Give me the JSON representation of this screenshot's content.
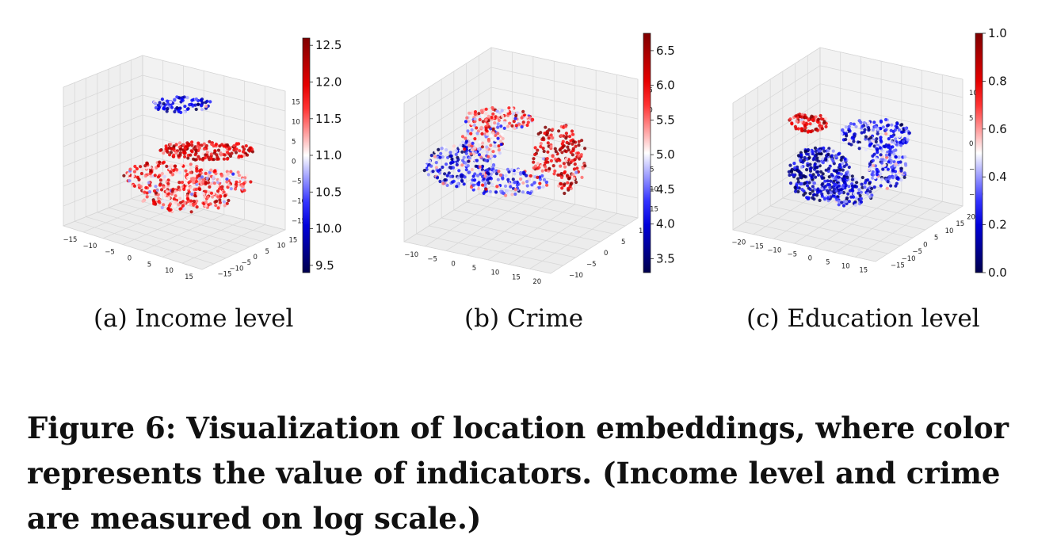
{
  "figure": {
    "caption": "Figure 6: Visualization of location embeddings, where color represents the value of indicators. (Income level and crime are measured on log scale.)"
  },
  "chart_data": [
    {
      "type": "scatter",
      "projection": "3d",
      "label": "(a)",
      "caption": "Income level",
      "colormap": "seismic",
      "point_count": 700,
      "x_ticks": [
        "−15",
        "−10",
        "−5",
        "0",
        "5",
        "10",
        "15"
      ],
      "y_ticks": [
        "−15",
        "−10",
        "−5",
        "0",
        "5",
        "10",
        "15"
      ],
      "z_ticks": [
        "−15",
        "−10",
        "−5",
        "0",
        "5",
        "10",
        "15"
      ],
      "colorbar": {
        "min": 9.4,
        "max": 12.6,
        "ticks": [
          "9.5",
          "10.0",
          "10.5",
          "11.0",
          "11.5",
          "12.0",
          "12.5"
        ]
      },
      "grid": true
    },
    {
      "type": "scatter",
      "projection": "3d",
      "label": "(b)",
      "caption": "Crime",
      "colormap": "seismic",
      "point_count": 750,
      "x_ticks": [
        "−10",
        "−5",
        "0",
        "5",
        "10",
        "15",
        "20"
      ],
      "y_ticks": [
        "−10",
        "−5",
        "0",
        "5",
        "10"
      ],
      "z_ticks": [
        "−15",
        "−10",
        "−5",
        "0",
        "5",
        "10",
        "15"
      ],
      "colorbar": {
        "min": 3.3,
        "max": 6.75,
        "ticks": [
          "3.5",
          "4.0",
          "4.5",
          "5.0",
          "5.5",
          "6.0",
          "6.5"
        ]
      },
      "grid": true
    },
    {
      "type": "scatter",
      "projection": "3d",
      "label": "(c)",
      "caption": "Education level",
      "colormap": "seismic",
      "point_count": 800,
      "x_ticks": [
        "−20",
        "−15",
        "−10",
        "−5",
        "0",
        "5",
        "10",
        "15"
      ],
      "y_ticks": [
        "−15",
        "−10",
        "−5",
        "0",
        "5",
        "10",
        "15",
        "20"
      ],
      "z_ticks": [
        "−10",
        "−5",
        "0",
        "5",
        "10"
      ],
      "colorbar": {
        "min": 0.0,
        "max": 1.0,
        "ticks": [
          "0.0",
          "0.2",
          "0.4",
          "0.6",
          "0.8",
          "1.0"
        ]
      },
      "grid": true
    }
  ]
}
